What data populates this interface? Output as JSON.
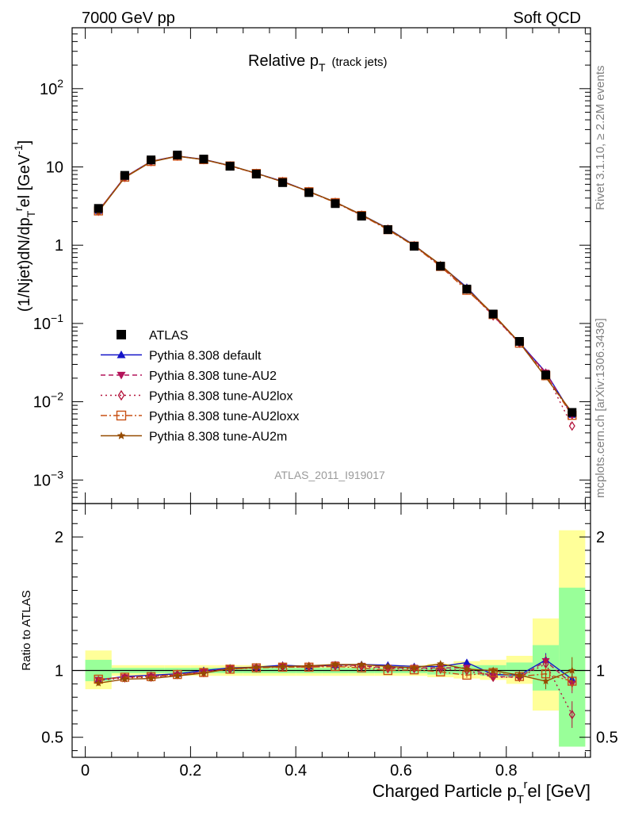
{
  "header": {
    "left": "7000 GeV pp",
    "right": "Soft QCD"
  },
  "side_labels": {
    "rivet": "Rivet 3.1.10, ≥ 2.2M events",
    "mcplots": "mcplots.cern.ch [arXiv:1306.3436]"
  },
  "chart_data": [
    {
      "type": "scatter",
      "panel": "main",
      "title_main": "Relative p",
      "title_sub": "T",
      "title_suffix": "(track jets)",
      "ylabel": "(1/Njet)dN/dp_T^rel [GeV^-1]",
      "watermark": "ATLAS_2011_I919017",
      "yscale": "log",
      "ylim": [
        0.0005,
        600
      ],
      "xlim": [
        -0.025,
        0.96
      ],
      "yticks": [
        {
          "v": 0.001,
          "m": "10",
          "e": "−3"
        },
        {
          "v": 0.01,
          "m": "10",
          "e": "−2"
        },
        {
          "v": 0.1,
          "m": "10",
          "e": "−1"
        },
        {
          "v": 1,
          "m": "1",
          "e": ""
        },
        {
          "v": 10,
          "m": "10",
          "e": ""
        },
        {
          "v": 100,
          "m": "10",
          "e": "2"
        }
      ],
      "x": [
        0.025,
        0.075,
        0.125,
        0.175,
        0.225,
        0.275,
        0.325,
        0.375,
        0.425,
        0.475,
        0.525,
        0.575,
        0.625,
        0.675,
        0.725,
        0.775,
        0.825,
        0.875,
        0.925
      ],
      "data": {
        "name": "ATLAS",
        "values": [
          2.95,
          7.8,
          12.3,
          14.2,
          12.6,
          10.2,
          8.1,
          6.3,
          4.7,
          3.4,
          2.35,
          1.58,
          0.97,
          0.54,
          0.275,
          0.132,
          0.059,
          0.022,
          0.0073
        ]
      },
      "series": [
        {
          "name": "Pythia 8.308 default",
          "color": "#1414c8",
          "marker": "triangle-up",
          "dash": "solid",
          "values": [
            2.75,
            7.45,
            11.8,
            13.8,
            12.5,
            10.4,
            8.3,
            6.55,
            4.85,
            3.55,
            2.45,
            1.64,
            1.0,
            0.555,
            0.29,
            0.128,
            0.057,
            0.0238,
            0.0068
          ]
        },
        {
          "name": "Pythia 8.308 tune-AU2",
          "color": "#b4145a",
          "marker": "triangle-down",
          "dash": "6,4",
          "values": [
            2.74,
            7.4,
            11.7,
            13.7,
            12.45,
            10.35,
            8.25,
            6.5,
            4.82,
            3.55,
            2.43,
            1.61,
            0.99,
            0.55,
            0.28,
            0.126,
            0.056,
            0.0235,
            0.0066
          ]
        },
        {
          "name": "Pythia 8.308 tune-AU2lox",
          "color": "#b4143c",
          "marker": "diamond-open",
          "dash": "2,4",
          "values": [
            2.72,
            7.35,
            11.7,
            13.75,
            12.4,
            10.3,
            8.25,
            6.5,
            4.85,
            3.52,
            2.42,
            1.6,
            0.985,
            0.545,
            0.275,
            0.125,
            0.056,
            0.023,
            0.0049
          ]
        },
        {
          "name": "Pythia 8.308 tune-AU2loxx",
          "color": "#c85014",
          "marker": "square-open",
          "dash": "8,3,2,3",
          "values": [
            2.74,
            7.4,
            11.75,
            13.75,
            12.4,
            10.3,
            8.25,
            6.45,
            4.82,
            3.5,
            2.4,
            1.58,
            0.975,
            0.535,
            0.265,
            0.13,
            0.056,
            0.0215,
            0.0067
          ]
        },
        {
          "name": "Pythia 8.308 tune-AU2m",
          "color": "#964b00",
          "marker": "star",
          "dash": "solid",
          "values": [
            2.68,
            7.3,
            11.6,
            13.7,
            12.4,
            10.4,
            8.3,
            6.45,
            4.85,
            3.55,
            2.45,
            1.62,
            0.99,
            0.565,
            0.28,
            0.132,
            0.057,
            0.0205,
            0.0073
          ]
        }
      ]
    },
    {
      "type": "scatter",
      "panel": "ratio",
      "ylabel": "Ratio to ATLAS",
      "xlabel": "Charged Particle p_T^rel [GeV]",
      "ylim": [
        0.35,
        2.25
      ],
      "xlim": [
        -0.025,
        0.96
      ],
      "yticks": [
        0.5,
        1,
        2
      ],
      "xticks": [
        0,
        0.2,
        0.4,
        0.6,
        0.8
      ],
      "band_edges": [
        0,
        0.05,
        0.1,
        0.15,
        0.2,
        0.25,
        0.3,
        0.35,
        0.4,
        0.45,
        0.5,
        0.55,
        0.6,
        0.65,
        0.7,
        0.75,
        0.8,
        0.85,
        0.9,
        0.95
      ],
      "band_yellow": [
        [
          0.86,
          1.15
        ],
        [
          0.96,
          1.04
        ],
        [
          0.96,
          1.04
        ],
        [
          0.96,
          1.04
        ],
        [
          0.96,
          1.04
        ],
        [
          0.96,
          1.04
        ],
        [
          0.96,
          1.04
        ],
        [
          0.96,
          1.04
        ],
        [
          0.96,
          1.04
        ],
        [
          0.96,
          1.04
        ],
        [
          0.96,
          1.04
        ],
        [
          0.96,
          1.04
        ],
        [
          0.96,
          1.04
        ],
        [
          0.95,
          1.05
        ],
        [
          0.94,
          1.07
        ],
        [
          0.93,
          1.08
        ],
        [
          0.9,
          1.11
        ],
        [
          0.7,
          1.39
        ],
        [
          0.43,
          2.05
        ]
      ],
      "band_green": [
        [
          0.92,
          1.08
        ],
        [
          0.98,
          1.02
        ],
        [
          0.98,
          1.02
        ],
        [
          0.98,
          1.02
        ],
        [
          0.98,
          1.02
        ],
        [
          0.98,
          1.02
        ],
        [
          0.98,
          1.02
        ],
        [
          0.98,
          1.02
        ],
        [
          0.98,
          1.02
        ],
        [
          0.98,
          1.02
        ],
        [
          0.98,
          1.02
        ],
        [
          0.98,
          1.02
        ],
        [
          0.98,
          1.02
        ],
        [
          0.97,
          1.03
        ],
        [
          0.97,
          1.04
        ],
        [
          0.96,
          1.04
        ],
        [
          0.95,
          1.06
        ],
        [
          0.85,
          1.19
        ],
        [
          0.43,
          1.62
        ]
      ],
      "x": [
        0.025,
        0.075,
        0.125,
        0.175,
        0.225,
        0.275,
        0.325,
        0.375,
        0.425,
        0.475,
        0.525,
        0.575,
        0.625,
        0.675,
        0.725,
        0.775,
        0.825,
        0.875,
        0.925
      ],
      "series": [
        {
          "name": "Pythia 8.308 default",
          "color": "#1414c8",
          "marker": "triangle-up",
          "dash": "solid",
          "values": [
            0.93,
            0.955,
            0.965,
            0.975,
            1.0,
            1.02,
            1.025,
            1.04,
            1.03,
            1.04,
            1.045,
            1.04,
            1.03,
            1.03,
            1.06,
            0.97,
            0.965,
            1.08,
            0.935
          ],
          "err": [
            0.02,
            0.01,
            0.01,
            0.01,
            0.01,
            0.01,
            0.01,
            0.01,
            0.01,
            0.01,
            0.01,
            0.01,
            0.01,
            0.01,
            0.02,
            0.02,
            0.03,
            0.05,
            0.06
          ]
        },
        {
          "name": "Pythia 8.308 tune-AU2",
          "color": "#b4145a",
          "marker": "triangle-down",
          "dash": "6,4",
          "values": [
            0.93,
            0.95,
            0.955,
            0.965,
            0.99,
            1.015,
            1.02,
            1.03,
            1.025,
            1.045,
            1.035,
            1.02,
            1.02,
            1.02,
            1.02,
            0.955,
            0.95,
            1.07,
            0.9
          ],
          "err": [
            0.02,
            0.01,
            0.01,
            0.01,
            0.01,
            0.01,
            0.01,
            0.01,
            0.01,
            0.01,
            0.01,
            0.01,
            0.01,
            0.01,
            0.02,
            0.02,
            0.03,
            0.05,
            0.07
          ]
        },
        {
          "name": "Pythia 8.308 tune-AU2lox",
          "color": "#b4143c",
          "marker": "diamond-open",
          "dash": "2,4",
          "values": [
            0.925,
            0.945,
            0.95,
            0.97,
            0.985,
            1.01,
            1.02,
            1.03,
            1.03,
            1.035,
            1.03,
            1.015,
            1.015,
            1.01,
            1.0,
            0.95,
            0.95,
            1.05,
            0.67
          ],
          "err": [
            0.02,
            0.01,
            0.01,
            0.01,
            0.01,
            0.01,
            0.01,
            0.01,
            0.01,
            0.01,
            0.01,
            0.01,
            0.01,
            0.01,
            0.02,
            0.02,
            0.03,
            0.06,
            0.1
          ]
        },
        {
          "name": "Pythia 8.308 tune-AU2loxx",
          "color": "#c85014",
          "marker": "square-open",
          "dash": "8,3,2,3",
          "values": [
            0.935,
            0.95,
            0.955,
            0.97,
            0.985,
            1.01,
            1.02,
            1.025,
            1.025,
            1.03,
            1.02,
            1.0,
            1.005,
            0.99,
            0.965,
            0.985,
            0.955,
            0.975,
            0.92
          ],
          "err": [
            0.02,
            0.01,
            0.01,
            0.01,
            0.01,
            0.01,
            0.01,
            0.01,
            0.01,
            0.01,
            0.01,
            0.01,
            0.01,
            0.01,
            0.02,
            0.02,
            0.03,
            0.05,
            0.07
          ]
        },
        {
          "name": "Pythia 8.308 tune-AU2m",
          "color": "#964b00",
          "marker": "star",
          "dash": "solid",
          "values": [
            0.905,
            0.935,
            0.94,
            0.96,
            0.98,
            1.015,
            1.025,
            1.03,
            1.035,
            1.045,
            1.045,
            1.03,
            1.02,
            1.05,
            1.01,
            1.0,
            0.965,
            0.92,
            1.0
          ],
          "err": [
            0.02,
            0.01,
            0.01,
            0.01,
            0.01,
            0.01,
            0.01,
            0.01,
            0.01,
            0.01,
            0.01,
            0.01,
            0.01,
            0.01,
            0.02,
            0.02,
            0.03,
            0.06,
            0.1
          ]
        }
      ]
    }
  ]
}
